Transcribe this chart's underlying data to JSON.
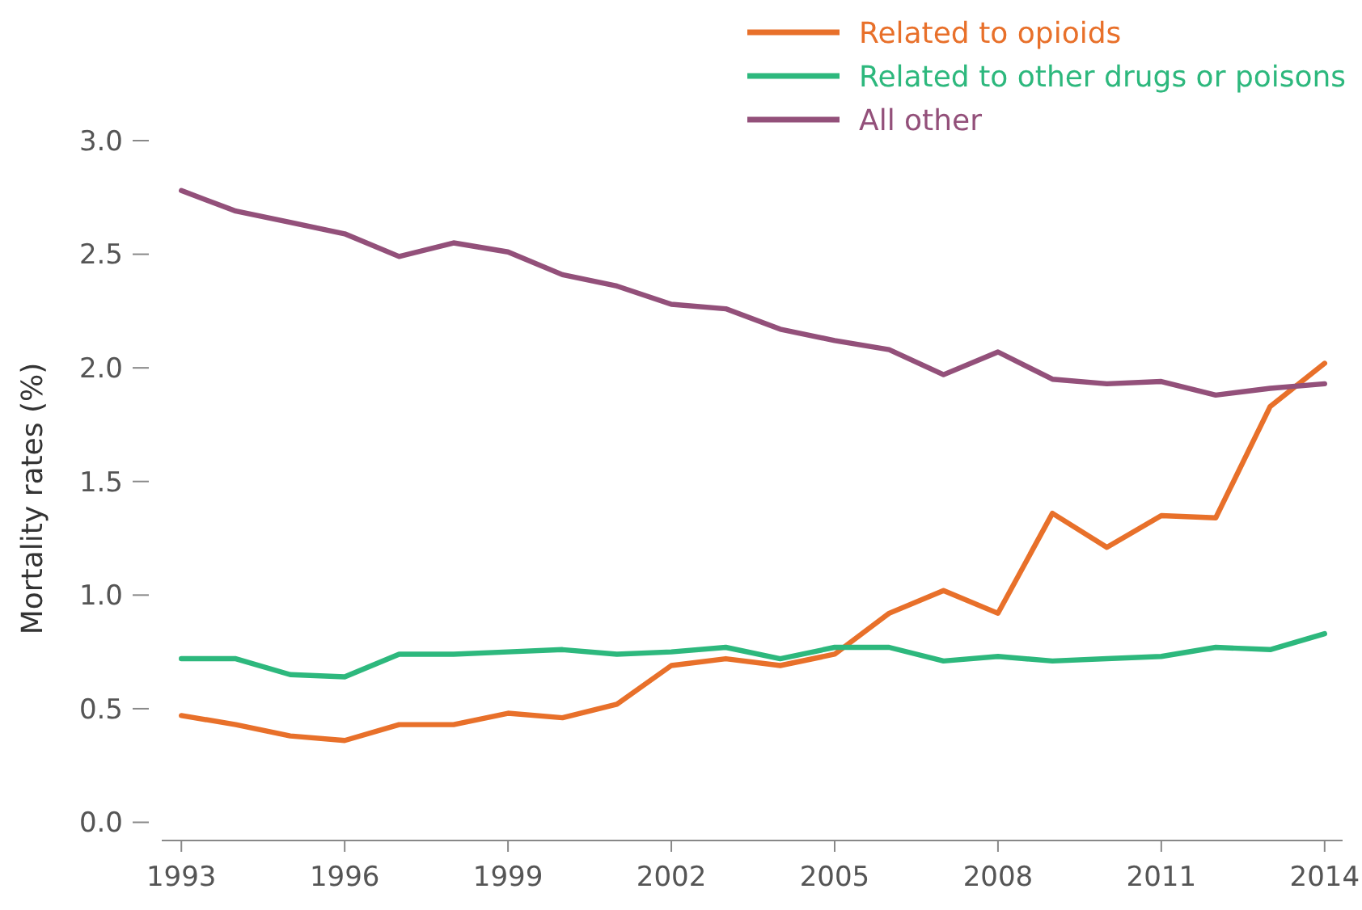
{
  "chart_data": {
    "type": "line",
    "ylabel": "Mortality rates (%)",
    "x": [
      1993,
      1994,
      1995,
      1996,
      1997,
      1998,
      1999,
      2000,
      2001,
      2002,
      2003,
      2004,
      2005,
      2006,
      2007,
      2008,
      2009,
      2010,
      2011,
      2012,
      2013,
      2014
    ],
    "series": [
      {
        "name": "Related to opioids",
        "color": "#e8702a",
        "values": [
          0.47,
          0.43,
          0.38,
          0.36,
          0.43,
          0.43,
          0.48,
          0.46,
          0.52,
          0.69,
          0.72,
          0.69,
          0.74,
          0.92,
          1.02,
          0.92,
          1.36,
          1.21,
          1.35,
          1.34,
          1.83,
          2.02
        ]
      },
      {
        "name": "Related to other drugs or poisons",
        "color": "#2db87d",
        "values": [
          0.72,
          0.72,
          0.65,
          0.64,
          0.74,
          0.74,
          0.75,
          0.76,
          0.74,
          0.75,
          0.77,
          0.72,
          0.77,
          0.77,
          0.71,
          0.73,
          0.71,
          0.72,
          0.73,
          0.77,
          0.76,
          0.83
        ]
      },
      {
        "name": "All other",
        "color": "#93507a",
        "values": [
          2.78,
          2.69,
          2.64,
          2.59,
          2.49,
          2.55,
          2.51,
          2.41,
          2.36,
          2.28,
          2.26,
          2.17,
          2.12,
          2.08,
          1.97,
          2.07,
          1.95,
          1.93,
          1.94,
          1.88,
          1.91,
          1.93
        ]
      }
    ],
    "xlim": [
      1992.64,
      2014.33
    ],
    "xticks": [
      1993,
      1996,
      1999,
      2002,
      2005,
      2008,
      2011,
      2014
    ],
    "ylim": [
      -0.08,
      3.0
    ],
    "yticks": [
      {
        "value": 0,
        "label": "0.0"
      },
      0.5,
      {
        "value": 1,
        "label": "1.0"
      },
      1.5,
      {
        "value": 2,
        "label": "2.0"
      },
      2.5,
      {
        "value": 3,
        "label": "3.0"
      }
    ],
    "grid": false,
    "legend": "top right",
    "marker": "none",
    "line_style": "solid"
  }
}
